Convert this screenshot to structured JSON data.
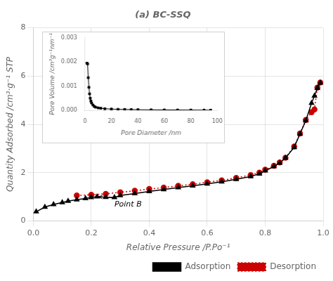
{
  "chart_data": [
    {
      "type": "line",
      "title": "(a) BC-SSQ",
      "xlabel": "Relative Pressure /P.Po⁻¹",
      "ylabel": "Quantity Adsorbed /cm³·g⁻¹ STP",
      "xlim": [
        0.0,
        1.0
      ],
      "ylim": [
        0.0,
        8.0
      ],
      "xticks": [
        {
          "value": 0.0,
          "label": "0.0"
        },
        0.2,
        0.4,
        0.6,
        0.8,
        {
          "value": 1.0,
          "label": "1.0"
        }
      ],
      "yticks": [
        0,
        2,
        4,
        6,
        8
      ],
      "grid": true,
      "legend": "lower right",
      "series": [
        {
          "name": "Adsorption",
          "color": "#000000",
          "marker": "triangle",
          "line_style": "solid",
          "x": [
            0.01,
            0.04,
            0.07,
            0.1,
            0.12,
            0.15,
            0.18,
            0.2,
            0.22,
            0.25,
            0.28,
            0.3,
            0.35,
            0.4,
            0.45,
            0.5,
            0.55,
            0.6,
            0.65,
            0.7,
            0.75,
            0.78,
            0.8,
            0.83,
            0.85,
            0.87,
            0.9,
            0.92,
            0.94,
            0.96,
            0.97,
            0.98,
            0.99
          ],
          "values": [
            0.38,
            0.57,
            0.68,
            0.76,
            0.82,
            0.88,
            0.93,
            0.97,
            1.0,
            0.98,
            0.97,
            1.05,
            1.13,
            1.22,
            1.3,
            1.38,
            1.45,
            1.53,
            1.62,
            1.72,
            1.84,
            1.95,
            2.08,
            2.25,
            2.4,
            2.6,
            3.05,
            3.6,
            4.15,
            4.88,
            5.18,
            5.5,
            5.72
          ]
        },
        {
          "name": "Desorption",
          "color": "#cc0000",
          "marker": "circle",
          "line_style": "dotted",
          "x": [
            0.15,
            0.2,
            0.25,
            0.3,
            0.35,
            0.4,
            0.45,
            0.5,
            0.55,
            0.6,
            0.65,
            0.7,
            0.75,
            0.78,
            0.8,
            0.83,
            0.85,
            0.87,
            0.9,
            0.92,
            0.94,
            0.96,
            0.97,
            0.98,
            0.99
          ],
          "values": [
            1.05,
            1.08,
            1.12,
            1.18,
            1.25,
            1.32,
            1.38,
            1.45,
            1.52,
            1.6,
            1.68,
            1.78,
            1.9,
            2.0,
            2.12,
            2.28,
            2.42,
            2.62,
            3.08,
            3.62,
            4.18,
            4.5,
            4.62,
            5.52,
            5.73
          ]
        }
      ],
      "annotations": [
        {
          "text": "Point B",
          "x": 0.22,
          "y": 1.0,
          "text_x": 0.28,
          "text_y": 0.6
        }
      ]
    },
    {
      "type": "line",
      "xlabel": "Pore Diameter /nm",
      "ylabel": "Pore Volume /cm³g⁻¹nm⁻¹",
      "xlim": [
        0,
        100
      ],
      "ylim": [
        0.0,
        0.003
      ],
      "xticks": [
        0,
        20,
        40,
        60,
        80,
        100
      ],
      "yticks": [
        {
          "value": 0.0,
          "label": "0.000"
        },
        0.001,
        0.002,
        0.003
      ],
      "grid": false,
      "series": [
        {
          "color": "#000000",
          "marker": "square",
          "line_style": "solid",
          "x": [
            1.5,
            2.0,
            2.5,
            3.0,
            3.5,
            4.0,
            4.5,
            5.0,
            6.0,
            7.0,
            8.0,
            10.0,
            12.0,
            15.0,
            20.0,
            25.0,
            30.0,
            35.0,
            40.0,
            50.0,
            60.0,
            70.0,
            80.0,
            90.0,
            95.0
          ],
          "values": [
            0.00195,
            0.00192,
            0.00135,
            0.00095,
            0.00068,
            0.0005,
            0.00038,
            0.0003,
            0.00022,
            0.00016,
            0.00013,
            0.0001,
            8.5e-05,
            6.5e-05,
            5e-05,
            4.2e-05,
            3.6e-05,
            3e-05,
            2.5e-05,
            2e-05,
            1.6e-05,
            1.3e-05,
            1e-05,
            8e-06,
            6e-06
          ]
        }
      ]
    }
  ]
}
